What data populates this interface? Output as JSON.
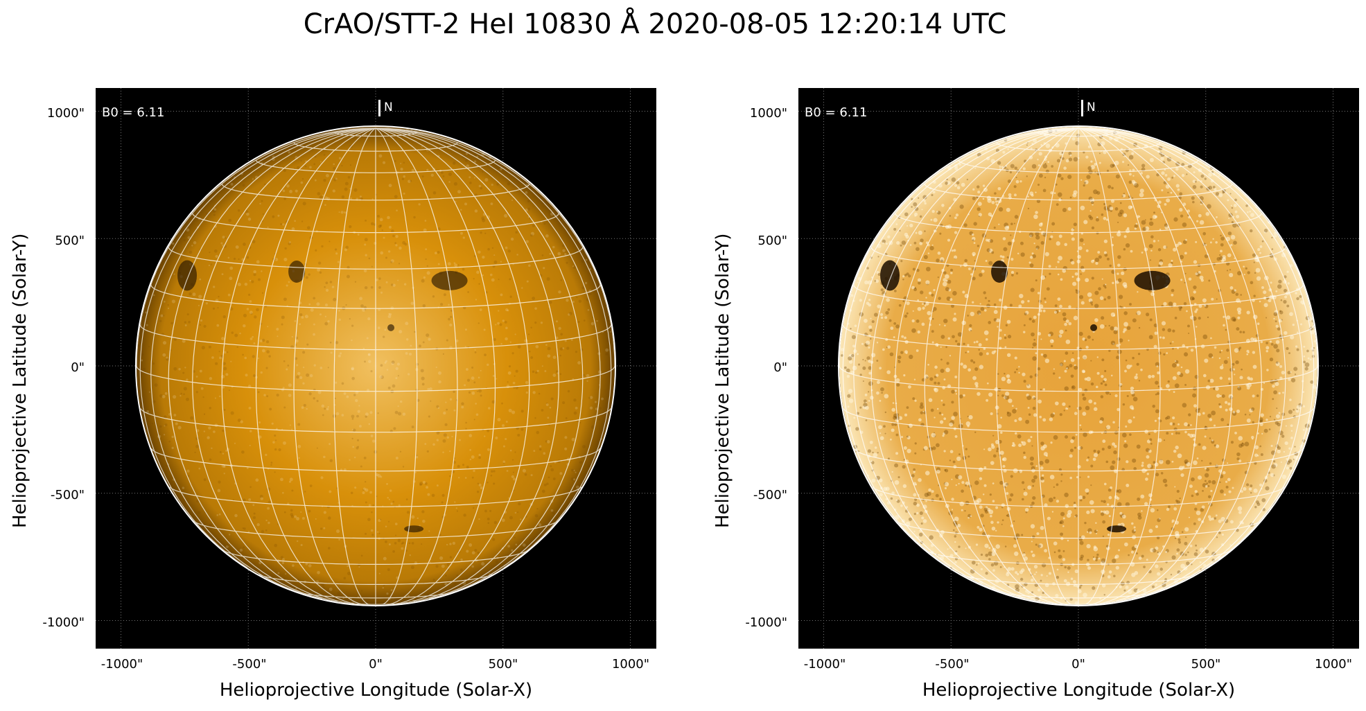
{
  "title": "CrAO/STT-2 HeI 10830 Å 2020-08-05 12:20:14 UTC",
  "panels": [
    {
      "b0_text": "B0 = 6.11",
      "north_label": "N",
      "ylabel": "Helioprojective Latitude (Solar-Y)",
      "xlabel": "Helioprojective Longitude (Solar-X)",
      "yticks": [
        "1000\"",
        "500\"",
        "0\"",
        "-500\"",
        "-1000\""
      ],
      "xticks": [
        "-1000\"",
        "-500\"",
        "0\"",
        "500\"",
        "1000\""
      ],
      "enhanced": false
    },
    {
      "b0_text": "B0 = 6.11",
      "north_label": "N",
      "ylabel": "Helioprojective Latitude (Solar-Y)",
      "xlabel": "Helioprojective Longitude (Solar-X)",
      "yticks": [
        "1000\"",
        "500\"",
        "0\"",
        "-500\"",
        "-1000\""
      ],
      "xticks": [
        "-1000\"",
        "-500\"",
        "0\"",
        "500\"",
        "1000\""
      ],
      "enhanced": true
    }
  ],
  "colors": {
    "disk_base": "#d8900a",
    "disk_bright": "#f1c060",
    "disk_limb": "#6a4200",
    "grid_line": "#ffffff",
    "background": "#000000"
  }
}
